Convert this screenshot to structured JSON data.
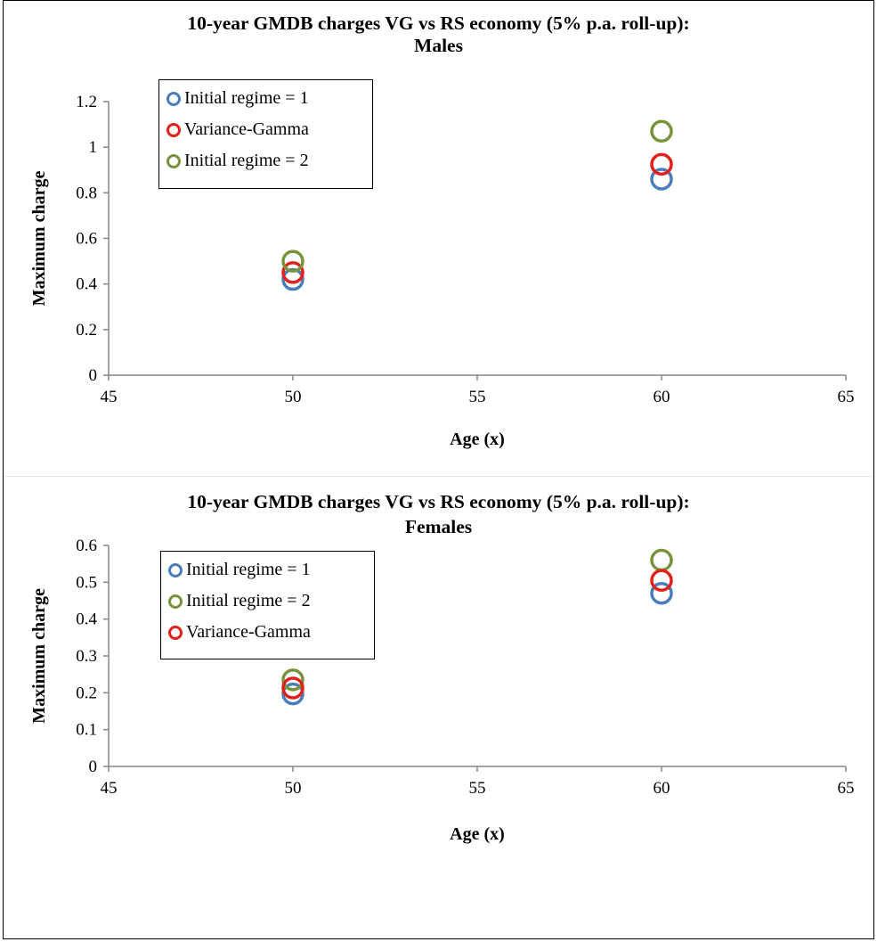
{
  "chart_data": [
    {
      "type": "scatter",
      "title_line1": "10-year GMDB charges VG vs RS economy (5% p.a. roll-up):",
      "title_line2": "Males",
      "xlabel": "Age (x)",
      "ylabel": "Maximum charge",
      "xlim": [
        45,
        65
      ],
      "ylim": [
        0,
        1.2
      ],
      "xticks": [
        "45",
        "50",
        "55",
        "60",
        "65"
      ],
      "yticks": [
        "0",
        "0.2",
        "0.4",
        "0.6",
        "0.8",
        "1",
        "1.2"
      ],
      "grid": false,
      "legend_position": "top-left",
      "series": [
        {
          "name": "Initial regime = 1",
          "color": "#4a7ebb",
          "x": [
            50,
            60
          ],
          "y": [
            0.42,
            0.86
          ]
        },
        {
          "name": "Variance-Gamma",
          "color": "#e3211c",
          "x": [
            50,
            60
          ],
          "y": [
            0.45,
            0.925
          ]
        },
        {
          "name": "Initial regime = 2",
          "color": "#77933c",
          "x": [
            50,
            60
          ],
          "y": [
            0.5,
            1.07
          ]
        }
      ]
    },
    {
      "type": "scatter",
      "title_line1": "10-year GMDB charges VG vs RS economy (5% p.a. roll-up):",
      "title_line2": "Females",
      "xlabel": "Age (x)",
      "ylabel": "Maximum charge",
      "xlim": [
        45,
        65
      ],
      "ylim": [
        0,
        0.6
      ],
      "xticks": [
        "45",
        "50",
        "55",
        "60",
        "65"
      ],
      "yticks": [
        "0",
        "0.1",
        "0.2",
        "0.3",
        "0.4",
        "0.5",
        "0.6"
      ],
      "grid": false,
      "legend_position": "top-left",
      "series": [
        {
          "name": "Initial regime = 1",
          "color": "#4a7ebb",
          "x": [
            50,
            60
          ],
          "y": [
            0.197,
            0.47
          ]
        },
        {
          "name": "Initial regime = 2",
          "color": "#77933c",
          "x": [
            50,
            60
          ],
          "y": [
            0.235,
            0.56
          ]
        },
        {
          "name": "Variance-Gamma",
          "color": "#e3211c",
          "x": [
            50,
            60
          ],
          "y": [
            0.213,
            0.505
          ]
        }
      ]
    }
  ]
}
